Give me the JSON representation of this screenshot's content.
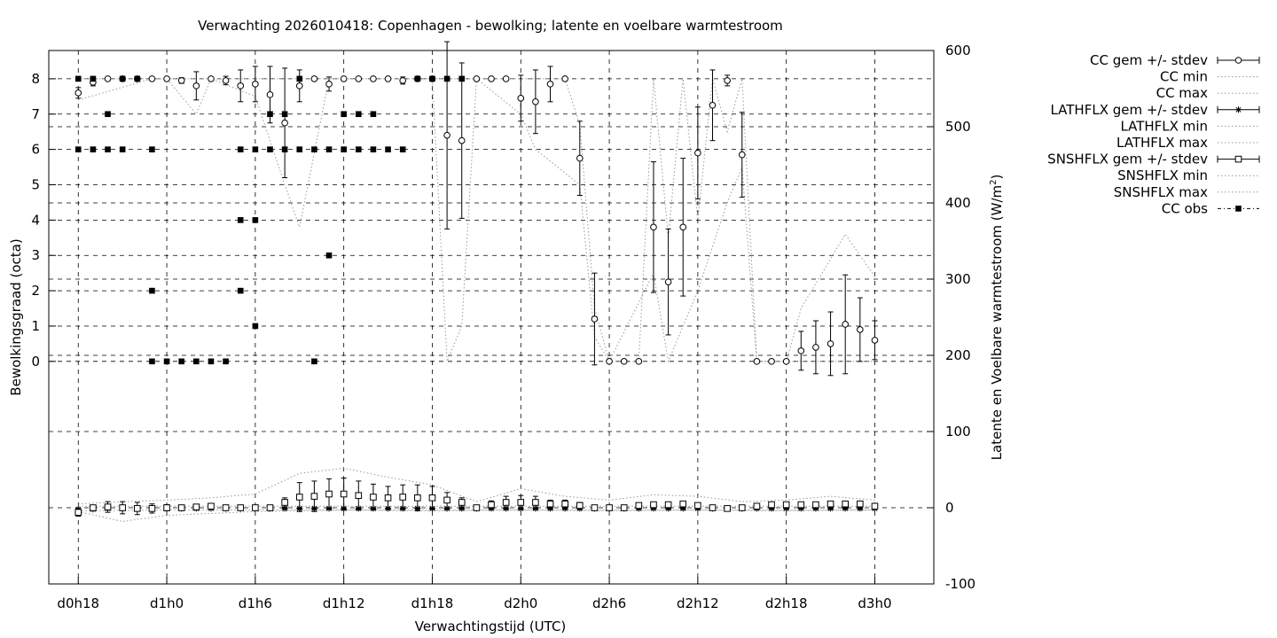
{
  "chart_data": {
    "type": "line",
    "title": "Verwachting 2026010418: Copenhagen - bewolking; latente en voelbare warmtestroom",
    "xlabel": "Verwachtingstijd (UTC)",
    "ylabel": "Bewolkingsgraad (octa)",
    "y2label_main": "Latente en Voelbare warmtestroom (W/m",
    "y2label_sup": "2",
    "y2label_end": ")",
    "x_unit": "forecast hours after 2026010418",
    "xlim": [
      -2,
      58
    ],
    "ylim": [
      -6.3,
      8.8
    ],
    "y2lim": [
      -100,
      600
    ],
    "grid": true,
    "legend_position": "outside-right",
    "x_ticks": [
      {
        "x": 0,
        "label": "d0h18"
      },
      {
        "x": 6,
        "label": "d1h0"
      },
      {
        "x": 12,
        "label": "d1h6"
      },
      {
        "x": 18,
        "label": "d1h12"
      },
      {
        "x": 24,
        "label": "d1h18"
      },
      {
        "x": 30,
        "label": "d2h0"
      },
      {
        "x": 36,
        "label": "d2h6"
      },
      {
        "x": 42,
        "label": "d2h12"
      },
      {
        "x": 48,
        "label": "d2h18"
      },
      {
        "x": 54,
        "label": "d3h0"
      }
    ],
    "y_ticks": [
      0,
      1,
      2,
      3,
      4,
      5,
      6,
      7,
      8
    ],
    "y2_ticks": [
      -100,
      0,
      100,
      200,
      300,
      400,
      500,
      600
    ],
    "legend": [
      {
        "label": "CC gem +/- stdev",
        "style": "errorbar-circle"
      },
      {
        "label": "CC min",
        "style": "dotted"
      },
      {
        "label": "CC max",
        "style": "dotted"
      },
      {
        "label": "LATHFLX gem +/- stdev",
        "style": "errorbar-star"
      },
      {
        "label": "LATHFLX min",
        "style": "dotted"
      },
      {
        "label": "LATHFLX max",
        "style": "dotted"
      },
      {
        "label": "SNSHFLX gem +/- stdev",
        "style": "errorbar-square"
      },
      {
        "label": "SNSHFLX min",
        "style": "dotted"
      },
      {
        "label": "SNSHFLX max",
        "style": "dotted"
      },
      {
        "label": "CC obs",
        "style": "filled-square"
      }
    ],
    "cc_mean": {
      "x": [
        0,
        1,
        2,
        3,
        4,
        5,
        6,
        7,
        8,
        9,
        10,
        11,
        12,
        13,
        14,
        15,
        16,
        17,
        18,
        19,
        20,
        21,
        22,
        23,
        24,
        25,
        26,
        27,
        28,
        29,
        30,
        31,
        32,
        33,
        34,
        35,
        36,
        37,
        38,
        39,
        40,
        41,
        42,
        43,
        44,
        45,
        46,
        47,
        48,
        49,
        50,
        51,
        52,
        53,
        54
      ],
      "mean": [
        7.6,
        7.9,
        8,
        8,
        8,
        8,
        8,
        7.95,
        7.8,
        8,
        7.95,
        7.8,
        7.85,
        7.55,
        6.75,
        7.8,
        8,
        7.85,
        8,
        8,
        8,
        8,
        7.95,
        8,
        8,
        6.4,
        6.25,
        8,
        8,
        8,
        7.45,
        7.35,
        7.85,
        8,
        5.75,
        1.2,
        0,
        0,
        0,
        3.8,
        2.25,
        3.8,
        5.9,
        7.25,
        7.95,
        5.85,
        0,
        0,
        0,
        0.3,
        0.4,
        0.5,
        1.05,
        0.9,
        0.6
      ],
      "sd": [
        0.15,
        0.1,
        0,
        0,
        0,
        0,
        0,
        0.08,
        0.4,
        0,
        0.12,
        0.45,
        0.5,
        0.8,
        1.55,
        0.45,
        0,
        0.2,
        0,
        0,
        0,
        0,
        0.1,
        0,
        0,
        2.65,
        2.2,
        0,
        0,
        0,
        0.65,
        0.9,
        0.5,
        0,
        1.05,
        1.3,
        0,
        0,
        0,
        1.85,
        1.5,
        1.95,
        1.3,
        1.0,
        0.15,
        1.2,
        0,
        0,
        0,
        0.55,
        0.75,
        0.9,
        1.4,
        0.9,
        0.55
      ]
    },
    "cc_min": {
      "x": [
        0,
        5,
        6,
        8,
        9,
        12,
        14,
        15,
        17,
        24,
        25,
        26,
        27,
        30,
        31,
        34,
        35,
        36,
        39,
        40,
        42,
        44,
        45,
        46,
        47,
        48,
        54
      ],
      "y": [
        7.4,
        8,
        8,
        7,
        8,
        7.5,
        5,
        3.8,
        8,
        8,
        0,
        1,
        8,
        7,
        6,
        5,
        0.7,
        0,
        2.5,
        0,
        2,
        4.5,
        5.5,
        0,
        0,
        0,
        0
      ]
    },
    "cc_max": {
      "x": [
        0,
        25,
        26,
        27,
        33,
        34,
        35,
        36,
        38,
        39,
        40,
        41,
        42,
        43,
        44,
        45,
        46,
        47,
        48,
        49,
        52,
        53,
        54
      ],
      "y": [
        8,
        8,
        8,
        8,
        8,
        6.7,
        1.5,
        0,
        0,
        8,
        3.5,
        8,
        4,
        8,
        6.5,
        8,
        0,
        0,
        0,
        1.5,
        3.6,
        3,
        2.4
      ]
    },
    "lathflx": {
      "x": [
        0,
        1,
        2,
        3,
        4,
        5,
        6,
        7,
        8,
        9,
        10,
        11,
        12,
        13,
        14,
        15,
        16,
        17,
        18,
        19,
        20,
        21,
        22,
        23,
        24,
        25,
        26,
        27,
        28,
        29,
        30,
        31,
        32,
        33,
        34,
        35,
        36,
        37,
        38,
        39,
        40,
        41,
        42,
        43,
        44,
        45,
        46,
        47,
        48,
        49,
        50,
        51,
        52,
        53,
        54
      ],
      "mean": [
        -2,
        -2,
        -1,
        -1,
        -1,
        -1,
        -1,
        -1,
        -1,
        -1,
        -1,
        -1,
        -1,
        -1,
        -1,
        -1,
        -1,
        -1,
        -1,
        -1,
        -1,
        -1,
        -1,
        -1,
        -1,
        -1,
        -1,
        -1,
        -1,
        -1,
        -1,
        -1,
        -1,
        -1,
        -1,
        -1,
        -1,
        -1,
        -1,
        -1,
        -1,
        -1,
        -1,
        -1,
        -1,
        -1,
        -1,
        -1,
        -1,
        -1,
        -1,
        -1,
        -1,
        -1,
        -1
      ],
      "sd": [
        1,
        1,
        1,
        1,
        1,
        1,
        1,
        1,
        1,
        1,
        1,
        1,
        1,
        1,
        1,
        1,
        1,
        1,
        1,
        1,
        1,
        1,
        1,
        1,
        1,
        1,
        1,
        1,
        1,
        1,
        1,
        1,
        1,
        1,
        1,
        1,
        1,
        1,
        1,
        1,
        1,
        1,
        1,
        1,
        1,
        1,
        1,
        1,
        1,
        1,
        1,
        1,
        1,
        1,
        1
      ]
    },
    "lathflx_min": {
      "x": [
        0,
        6,
        12,
        18,
        24,
        30,
        36,
        42,
        48,
        54
      ],
      "y": [
        -4,
        -3,
        -3,
        -3,
        -3,
        -3,
        -3,
        -3,
        -3,
        -3
      ]
    },
    "lathflx_max": {
      "x": [
        0,
        6,
        12,
        18,
        24,
        30,
        36,
        42,
        48,
        54
      ],
      "y": [
        2,
        2,
        2,
        2,
        2,
        2,
        2,
        2,
        2,
        2
      ]
    },
    "snshflx": {
      "x": [
        0,
        1,
        2,
        3,
        4,
        5,
        6,
        7,
        8,
        9,
        10,
        11,
        12,
        13,
        14,
        15,
        16,
        17,
        18,
        19,
        20,
        21,
        22,
        23,
        24,
        25,
        26,
        27,
        28,
        29,
        30,
        31,
        32,
        33,
        34,
        35,
        36,
        37,
        38,
        39,
        40,
        41,
        42,
        43,
        44,
        45,
        46,
        47,
        48,
        49,
        50,
        51,
        52,
        53,
        54
      ],
      "mean": [
        -6,
        0,
        1,
        0,
        -1,
        -1,
        0,
        0,
        1,
        2,
        0,
        0,
        0,
        0,
        7,
        14,
        15,
        18,
        18,
        16,
        14,
        13,
        14,
        13,
        13,
        10,
        7,
        0,
        4,
        7,
        7,
        7,
        5,
        5,
        3,
        0,
        0,
        0,
        3,
        4,
        4,
        5,
        3,
        0,
        -1,
        0,
        2,
        4,
        4,
        4,
        4,
        5,
        5,
        5,
        2
      ],
      "sd": [
        5,
        3,
        7,
        8,
        8,
        6,
        4,
        3,
        3,
        2,
        1,
        1,
        1,
        2,
        6,
        19,
        20,
        20,
        21,
        19,
        17,
        15,
        16,
        17,
        15,
        10,
        6,
        0,
        5,
        8,
        9,
        8,
        5,
        5,
        4,
        2,
        2,
        2,
        3,
        3,
        3,
        3,
        3,
        1,
        1,
        1,
        1,
        2,
        2,
        2,
        2,
        3,
        3,
        3,
        2
      ]
    },
    "snshflx_min": {
      "x": [
        0,
        3,
        6,
        12,
        18,
        24,
        30,
        36,
        42,
        48,
        54
      ],
      "y": [
        -5,
        -18,
        -10,
        -5,
        -3,
        -4,
        -3,
        -4,
        -3,
        -4,
        -3
      ]
    },
    "snshflx_max": {
      "x": [
        0,
        3,
        6,
        9,
        12,
        15,
        18,
        21,
        24,
        27,
        30,
        33,
        36,
        39,
        42,
        45,
        48,
        51,
        54
      ],
      "y": [
        5,
        8,
        10,
        13,
        18,
        45,
        52,
        40,
        30,
        8,
        25,
        15,
        10,
        17,
        15,
        8,
        10,
        15,
        10
      ]
    },
    "cc_obs": {
      "x": [
        0,
        0,
        1,
        1,
        2,
        2,
        3,
        3,
        4,
        5,
        5,
        5,
        6,
        7,
        8,
        9,
        10,
        11,
        11,
        11,
        12,
        12,
        12,
        13,
        13,
        14,
        14,
        15,
        15,
        16,
        16,
        17,
        17,
        18,
        18,
        19,
        19,
        20,
        20,
        21,
        22,
        23,
        24,
        25,
        26
      ],
      "y": [
        8,
        6,
        8,
        6,
        7,
        6,
        8,
        6,
        8,
        6,
        2,
        0,
        0,
        0,
        0,
        0,
        0,
        6,
        4,
        2,
        6,
        4,
        1,
        7,
        6,
        7,
        6,
        8,
        6,
        6,
        0,
        3,
        6,
        7,
        6,
        7,
        6,
        7,
        6,
        6,
        6,
        8,
        8,
        8,
        8
      ]
    }
  }
}
